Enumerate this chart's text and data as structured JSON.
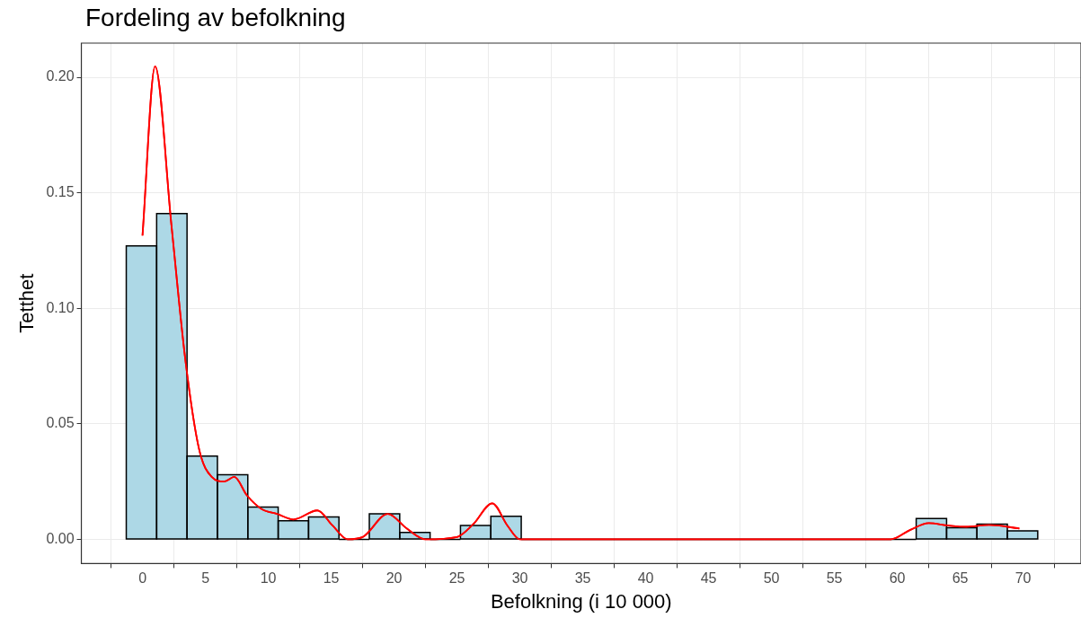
{
  "chart_data": {
    "type": "histogram",
    "title": "Fordeling av befolkning",
    "xlabel": "Befolkning (i 10 000)",
    "ylabel": "Tetthet",
    "bins": [
      -1.29,
      1.125,
      3.54,
      5.955,
      8.37,
      10.785,
      13.2,
      15.615,
      18.03,
      20.445,
      22.86,
      25.275,
      27.69,
      30.105,
      32.52,
      34.935,
      37.35,
      39.765,
      42.18,
      44.595,
      47.01,
      49.425,
      51.84,
      54.255,
      56.67,
      59.085,
      61.5,
      63.915,
      66.33,
      68.745,
      71.16
    ],
    "values": [
      0.127,
      0.141,
      0.036,
      0.028,
      0.014,
      0.008,
      0.0097,
      0,
      0.011,
      0.003,
      0,
      0.006,
      0.01,
      0,
      0,
      0,
      0,
      0,
      0,
      0,
      0,
      0,
      0,
      0,
      0,
      0,
      0.009,
      0.005,
      0.0066,
      0.0037
    ],
    "color": "#add8e6",
    "series": [
      {
        "type": "line",
        "color": "#ff0000",
        "x": [
          0,
          1,
          2.3,
          3.4,
          4.5,
          5.5,
          6.5,
          7.3,
          8.3,
          9.5,
          10.7,
          12,
          13.9,
          15.1,
          16.3,
          17.5,
          19.5,
          21,
          22.5,
          25,
          26.3,
          27.8,
          29,
          30,
          40,
          50,
          59.5,
          61,
          62.5,
          64,
          65.5,
          67.3,
          69.7
        ],
        "values": [
          0.1315,
          0.2047,
          0.136,
          0.078,
          0.039,
          0.027,
          0.025,
          0.027,
          0.019,
          0.013,
          0.011,
          0.0086,
          0.0125,
          0.006,
          0,
          0.001,
          0.011,
          0.0047,
          0,
          0.001,
          0.0066,
          0.0156,
          0.006,
          0,
          0,
          0,
          0,
          0.004,
          0.007,
          0.006,
          0.0054,
          0.0062,
          0.0047
        ]
      }
    ],
    "xlim": [
      -4.86,
      74.6
    ],
    "ylim": [
      -0.0105,
      0.2148
    ],
    "xticks": [
      0,
      5,
      10,
      15,
      20,
      25,
      30,
      35,
      40,
      45,
      50,
      55,
      60,
      65,
      70
    ],
    "yticks": [
      {
        "value": 0,
        "label": "0.00"
      },
      {
        "value": 0.05,
        "label": "0.05"
      },
      {
        "value": 0.1,
        "label": "0.10"
      },
      {
        "value": 0.15,
        "label": "0.15"
      },
      {
        "value": 0.2,
        "label": "0.20"
      }
    ],
    "grid": true,
    "legend": false,
    "marker": "none",
    "line_style": "solid"
  }
}
